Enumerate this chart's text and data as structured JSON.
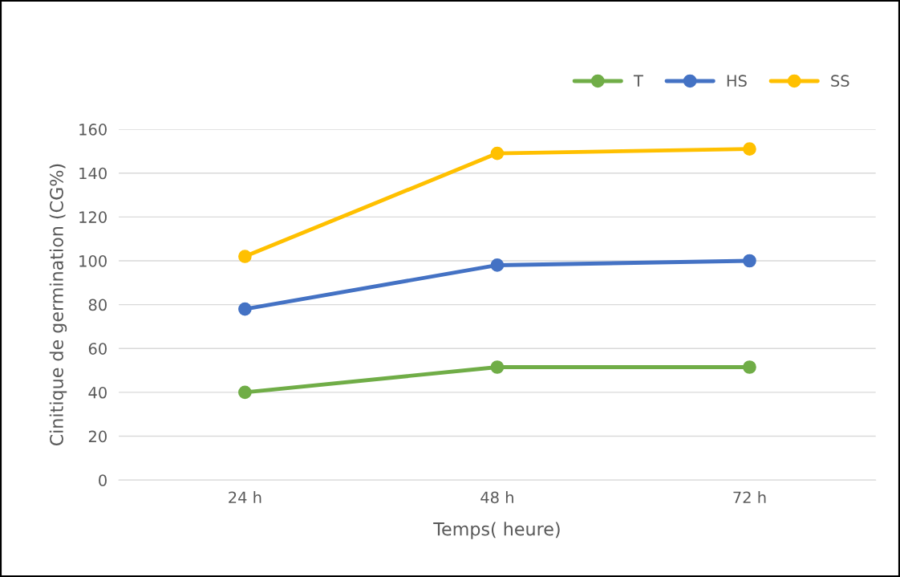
{
  "chart_data": {
    "type": "line",
    "xlabel": "Temps( heure)",
    "ylabel": "Cinitique de germination (CG%)",
    "categories": [
      "24 h",
      "48 h",
      "72 h"
    ],
    "series": [
      {
        "name": "T",
        "color": "#70ad47",
        "values": [
          40,
          51.5,
          51.5
        ]
      },
      {
        "name": "HS",
        "color": "#4472c4",
        "values": [
          78,
          98,
          100
        ]
      },
      {
        "name": "SS",
        "color": "#ffc000",
        "values": [
          102,
          149,
          151
        ]
      }
    ],
    "ylim": [
      0,
      160
    ],
    "yticks": [
      0,
      20,
      40,
      60,
      80,
      100,
      120,
      140,
      160
    ],
    "grid": "y",
    "legend": "top right",
    "marker": "circle",
    "line_style": "solid"
  }
}
